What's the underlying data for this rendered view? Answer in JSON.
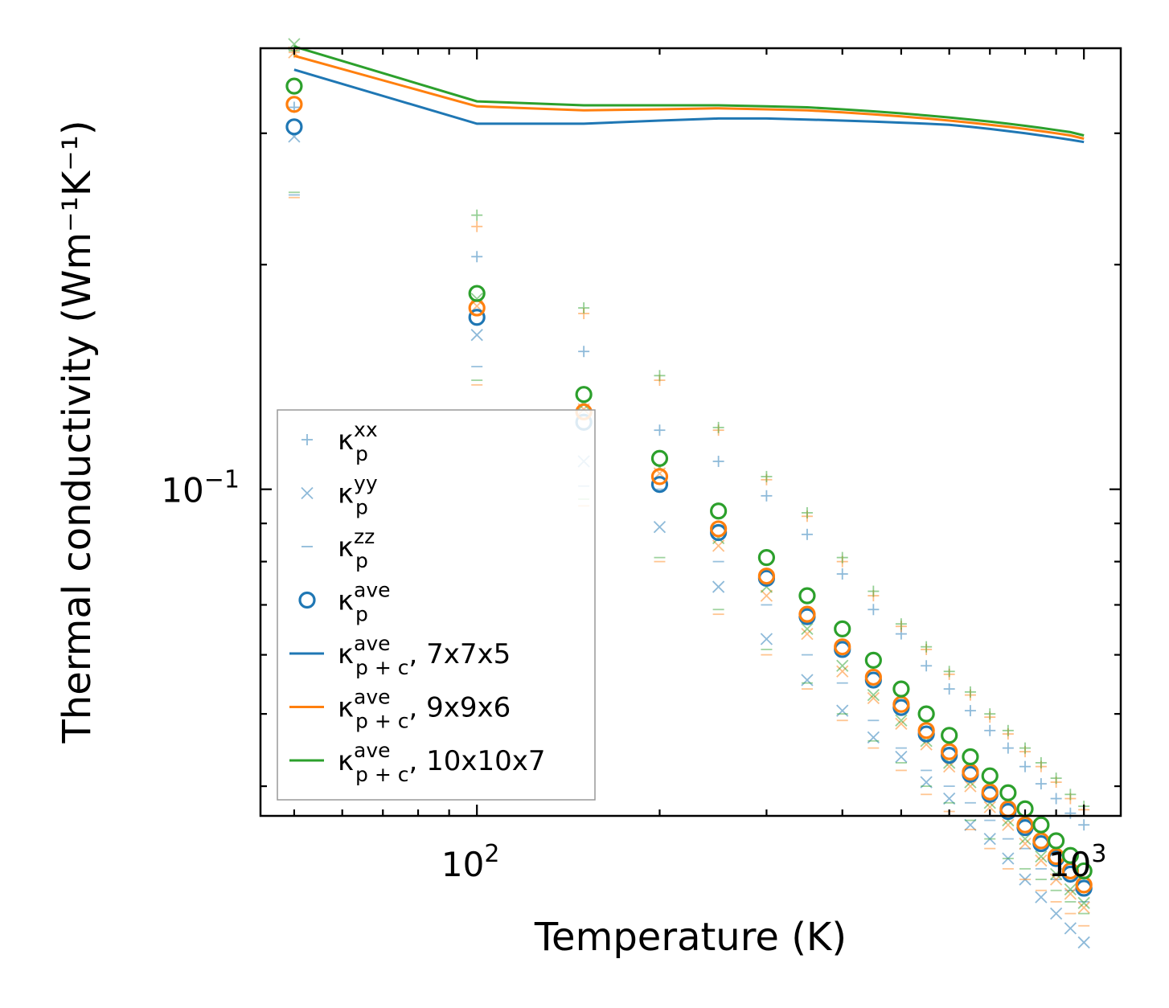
{
  "colors": {
    "blue": "#1f77b4",
    "orange": "#ff7f0e",
    "green": "#2ca02c",
    "frame": "#000000",
    "legend_border": "#999999"
  },
  "chart_data": {
    "type": "scatter",
    "xscale": "log",
    "yscale": "log",
    "xlim": [
      44,
      1150
    ],
    "ylim": [
      0.0365,
      0.39
    ],
    "xlabel": "Temperature (K)",
    "ylabel": "Thermal conductivity (Wm⁻¹K⁻¹)",
    "x_ticks": [
      {
        "value": 100,
        "label": "10",
        "exp": "2"
      },
      {
        "value": 1000,
        "label": "10",
        "exp": "3"
      }
    ],
    "y_ticks": [
      {
        "value": 0.1,
        "label": "10",
        "exp": "−1"
      }
    ],
    "temperatures": [
      50,
      100,
      150,
      200,
      250,
      300,
      350,
      400,
      450,
      500,
      550,
      600,
      650,
      700,
      750,
      800,
      850,
      900,
      950,
      1000
    ],
    "meshes": [
      {
        "name": "7x7x5",
        "color": "blue",
        "kxx": [
          0.325,
          0.205,
          0.153,
          0.12,
          0.109,
          0.098,
          0.087,
          0.077,
          0.069,
          0.064,
          0.058,
          0.054,
          0.0505,
          0.0475,
          0.045,
          0.0425,
          0.0403,
          0.0385,
          0.0368,
          0.0355
        ],
        "kyy": [
          0.297,
          0.161,
          0.109,
          0.089,
          0.074,
          0.063,
          0.0555,
          0.0505,
          0.0465,
          0.0438,
          0.0405,
          0.0385,
          0.0355,
          0.034,
          0.032,
          0.03,
          0.0284,
          0.027,
          0.0258,
          0.0247
        ],
        "kzz": [
          0.248,
          0.146,
          0.101,
          0.1,
          0.08,
          0.07,
          0.06,
          0.055,
          0.049,
          0.045,
          0.042,
          0.04,
          0.038,
          0.036,
          0.034,
          0.033,
          0.031,
          0.03,
          0.029,
          0.028
        ],
        "kave": [
          0.306,
          0.17,
          0.123,
          0.1015,
          0.0875,
          0.076,
          0.0675,
          0.061,
          0.0555,
          0.051,
          0.047,
          0.044,
          0.0415,
          0.039,
          0.037,
          0.0352,
          0.0335,
          0.032,
          0.0305,
          0.0292
        ],
        "kpc": [
          0.365,
          0.309,
          0.309,
          0.312,
          0.314,
          0.314,
          0.313,
          0.312,
          0.311,
          0.31,
          0.309,
          0.308,
          0.306,
          0.304,
          0.302,
          0.3,
          0.298,
          0.296,
          0.294,
          0.292
        ]
      },
      {
        "name": "9x9x6",
        "color": "orange",
        "kxx": [
          0.385,
          0.225,
          0.172,
          0.14,
          0.12,
          0.103,
          0.092,
          0.08,
          0.072,
          0.0655,
          0.061,
          0.0565,
          0.053,
          0.0495,
          0.047,
          0.0445,
          0.0425,
          0.0405,
          0.0385,
          0.0372
        ],
        "kyy": [
          0.385,
          0.176,
          0.128,
          0.105,
          0.084,
          0.072,
          0.064,
          0.057,
          0.0525,
          0.0485,
          0.0455,
          0.0425,
          0.04,
          0.0375,
          0.0355,
          0.0335,
          0.0318,
          0.03,
          0.0287,
          0.0275
        ],
        "kzz": [
          0.246,
          0.138,
          0.095,
          0.08,
          0.068,
          0.06,
          0.054,
          0.049,
          0.045,
          0.042,
          0.039,
          0.037,
          0.035,
          0.033,
          0.031,
          0.03,
          0.029,
          0.028,
          0.027,
          0.026
        ],
        "kave": [
          0.328,
          0.175,
          0.127,
          0.104,
          0.0885,
          0.0765,
          0.068,
          0.0615,
          0.056,
          0.0515,
          0.0475,
          0.0445,
          0.0418,
          0.0393,
          0.0373,
          0.0355,
          0.0338,
          0.0322,
          0.0308,
          0.0295
        ],
        "kpc": [
          0.381,
          0.326,
          0.322,
          0.323,
          0.324,
          0.323,
          0.322,
          0.32,
          0.318,
          0.316,
          0.314,
          0.312,
          0.31,
          0.308,
          0.306,
          0.304,
          0.302,
          0.3,
          0.298,
          0.295
        ]
      },
      {
        "name": "10x10x7",
        "color": "green",
        "kxx": [
          0.387,
          0.233,
          0.175,
          0.142,
          0.121,
          0.104,
          0.093,
          0.081,
          0.073,
          0.066,
          0.0615,
          0.057,
          0.0535,
          0.05,
          0.0475,
          0.045,
          0.043,
          0.041,
          0.039,
          0.0376
        ],
        "kyy": [
          0.395,
          0.18,
          0.13,
          0.107,
          0.086,
          0.074,
          0.065,
          0.058,
          0.053,
          0.049,
          0.046,
          0.043,
          0.0405,
          0.038,
          0.036,
          0.034,
          0.0322,
          0.0305,
          0.0291,
          0.0279
        ],
        "kzz": [
          0.25,
          0.14,
          0.097,
          0.081,
          0.069,
          0.061,
          0.055,
          0.05,
          0.046,
          0.043,
          0.04,
          0.038,
          0.036,
          0.034,
          0.032,
          0.031,
          0.03,
          0.029,
          0.028,
          0.027
        ],
        "kave": [
          0.347,
          0.183,
          0.134,
          0.11,
          0.0935,
          0.081,
          0.072,
          0.065,
          0.059,
          0.054,
          0.05,
          0.0468,
          0.0438,
          0.0413,
          0.0392,
          0.0373,
          0.0355,
          0.0338,
          0.0323,
          0.0308
        ],
        "kpc": [
          0.392,
          0.331,
          0.327,
          0.327,
          0.327,
          0.326,
          0.325,
          0.323,
          0.321,
          0.319,
          0.317,
          0.315,
          0.313,
          0.311,
          0.309,
          0.307,
          0.305,
          0.303,
          0.301,
          0.298
        ]
      }
    ],
    "legend": {
      "placement": "lower-left",
      "entries": [
        {
          "marker": "plus",
          "color": "blue",
          "symbol": "κ",
          "sub": "p",
          "sup": "xx",
          "suffix": ""
        },
        {
          "marker": "x",
          "color": "blue",
          "symbol": "κ",
          "sub": "p",
          "sup": "yy",
          "suffix": ""
        },
        {
          "marker": "dash",
          "color": "blue",
          "symbol": "κ",
          "sub": "p",
          "sup": "zz",
          "suffix": ""
        },
        {
          "marker": "circle",
          "color": "blue",
          "symbol": "κ",
          "sub": "p",
          "sup": "ave",
          "suffix": ""
        },
        {
          "marker": "line",
          "color": "blue",
          "symbol": "κ",
          "sub": "p + c",
          "sup": "ave",
          "suffix": ", 7x7x5"
        },
        {
          "marker": "line",
          "color": "orange",
          "symbol": "κ",
          "sub": "p + c",
          "sup": "ave",
          "suffix": ", 9x9x6"
        },
        {
          "marker": "line",
          "color": "green",
          "symbol": "κ",
          "sub": "p + c",
          "sup": "ave",
          "suffix": ", 10x10x7"
        }
      ]
    }
  }
}
